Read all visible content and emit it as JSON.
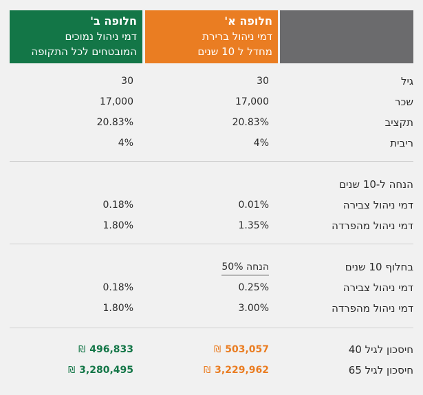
{
  "headers": {
    "option_a": {
      "title": "חלופה א'",
      "line1": "דמי ניהול ברירת",
      "line2": "מחדל ל 10 שנים"
    },
    "option_b": {
      "title": "חלופה ב'",
      "line1": "דמי ניהול נמוכים",
      "line2": "המובטחים לכל התקופה"
    }
  },
  "basic": {
    "age": {
      "label": "גיל",
      "a": "30",
      "b": "30"
    },
    "salary": {
      "label": "שכר",
      "a": "17,000",
      "b": "17,000"
    },
    "allocation": {
      "label": "תקציב",
      "a": "20.83%",
      "b": "20.83%"
    },
    "interest": {
      "label": "ריבית",
      "a": "4%",
      "b": "4%"
    }
  },
  "discount_period": {
    "title": "הנחה ל-10 שנים",
    "accumulation_fee": {
      "label": "דמי ניהול צבירה",
      "a": "0.01%",
      "b": "0.18%"
    },
    "deposit_fee": {
      "label": "דמי ניהול מהפרדה",
      "a": "1.35%",
      "b": "1.80%"
    }
  },
  "after_period": {
    "title": "בחלוף 10 שנים",
    "discount_note": "הנחה 50%",
    "accumulation_fee": {
      "label": "דמי ניהול צבירה",
      "a": "0.25%",
      "b": "0.18%"
    },
    "deposit_fee": {
      "label": "דמי ניהול מהפרדה",
      "a": "3.00%",
      "b": "1.80%"
    }
  },
  "savings": {
    "currency": "₪",
    "age40": {
      "label": "חיסכון לגיל 40",
      "a": "503,057",
      "b": "496,833"
    },
    "age65": {
      "label": "חיסכון לגיל 65",
      "a": "3,229,962",
      "b": "3,280,495"
    }
  },
  "colors": {
    "orange": "#ea7d22",
    "green": "#137647",
    "grey": "#6b6b6d"
  }
}
